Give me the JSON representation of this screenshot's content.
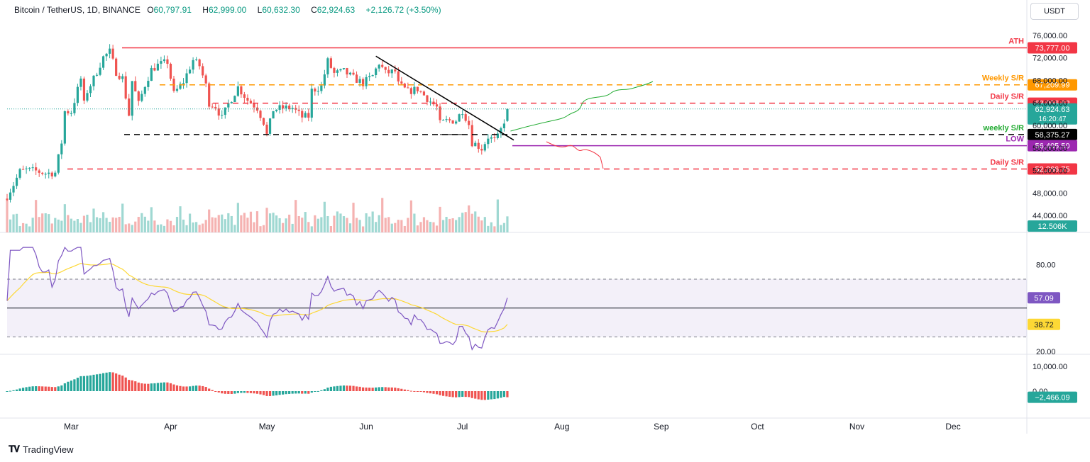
{
  "header": {
    "symbol": "Bitcoin / TetherUS, 1D, BINANCE",
    "open_label": "O",
    "open": "60,797.91",
    "high_label": "H",
    "high": "62,999.00",
    "low_label": "L",
    "low": "60,632.30",
    "close_label": "C",
    "close": "62,924.63",
    "change": "+2,126.72 (+3.50%)"
  },
  "currency_button": "USDT",
  "brand": "TradingView",
  "colors": {
    "up": "#26a69a",
    "down": "#ef5350",
    "rsi": "#7e57c2",
    "rsi_ma": "#fdd835",
    "ath": "#f23645",
    "weekly": "#ff9800",
    "low": "#9c27b0",
    "support": "#000000",
    "forecast_up": "#22ab32",
    "forecast_down": "#f23645"
  },
  "chart_data": [
    {
      "type": "candlestick",
      "title": "",
      "x_ticks": [
        "Mar",
        "Apr",
        "May",
        "Jun",
        "Jul",
        "Aug",
        "Sep",
        "Oct",
        "Nov",
        "Dec"
      ],
      "y_ticks": [
        44000,
        48000,
        52000,
        56000,
        60000,
        64000,
        68000,
        72000,
        76000
      ],
      "y_tick_labels": [
        "44,000.00",
        "48,000.00",
        "52,000.00",
        "56,000.00",
        "60,000.00",
        "64,000.00",
        "68,000.00",
        "72,000.00",
        "76,000.00"
      ],
      "ylim": [
        41000,
        78500
      ],
      "series_close": [
        [
          "2024-02-10",
          47500
        ],
        [
          "2024-02-12",
          49500
        ],
        [
          "2024-02-14",
          51800
        ],
        [
          "2024-02-16",
          52100
        ],
        [
          "2024-02-19",
          51900
        ],
        [
          "2024-02-22",
          51500
        ],
        [
          "2024-02-25",
          51600
        ],
        [
          "2024-02-27",
          57000
        ],
        [
          "2024-02-28",
          62500
        ],
        [
          "2024-03-01",
          62400
        ],
        [
          "2024-03-04",
          68300
        ],
        [
          "2024-03-05",
          63800
        ],
        [
          "2024-03-06",
          66100
        ],
        [
          "2024-03-08",
          68300
        ],
        [
          "2024-03-11",
          72100
        ],
        [
          "2024-03-13",
          73100
        ],
        [
          "2024-03-15",
          69500
        ],
        [
          "2024-03-17",
          68400
        ],
        [
          "2024-03-19",
          61900
        ],
        [
          "2024-03-20",
          67900
        ],
        [
          "2024-03-22",
          63800
        ],
        [
          "2024-03-24",
          67200
        ],
        [
          "2024-03-26",
          69900
        ],
        [
          "2024-03-28",
          70700
        ],
        [
          "2024-03-31",
          71300
        ],
        [
          "2024-04-02",
          65600
        ],
        [
          "2024-04-05",
          67800
        ],
        [
          "2024-04-08",
          71600
        ],
        [
          "2024-04-10",
          70600
        ],
        [
          "2024-04-12",
          67100
        ],
        [
          "2024-04-13",
          64000
        ],
        [
          "2024-04-15",
          63400
        ],
        [
          "2024-04-17",
          61300
        ],
        [
          "2024-04-19",
          63800
        ],
        [
          "2024-04-22",
          66800
        ],
        [
          "2024-04-25",
          64500
        ],
        [
          "2024-04-28",
          63100
        ],
        [
          "2024-04-30",
          60600
        ],
        [
          "2024-05-01",
          58300
        ],
        [
          "2024-05-03",
          62800
        ],
        [
          "2024-05-06",
          63100
        ],
        [
          "2024-05-09",
          63100
        ],
        [
          "2024-05-12",
          61500
        ],
        [
          "2024-05-14",
          61600
        ],
        [
          "2024-05-15",
          66200
        ],
        [
          "2024-05-18",
          66900
        ],
        [
          "2024-05-20",
          71400
        ],
        [
          "2024-05-22",
          69200
        ],
        [
          "2024-05-25",
          69600
        ],
        [
          "2024-05-28",
          68400
        ],
        [
          "2024-05-31",
          67500
        ],
        [
          "2024-06-03",
          68800
        ],
        [
          "2024-06-05",
          71100
        ],
        [
          "2024-06-07",
          69300
        ],
        [
          "2024-06-10",
          69600
        ],
        [
          "2024-06-11",
          67300
        ],
        [
          "2024-06-14",
          66000
        ],
        [
          "2024-06-17",
          66500
        ],
        [
          "2024-06-20",
          64800
        ],
        [
          "2024-06-23",
          63200
        ],
        [
          "2024-06-24",
          60300
        ],
        [
          "2024-06-26",
          60800
        ],
        [
          "2024-06-29",
          60900
        ],
        [
          "2024-07-01",
          62700
        ],
        [
          "2024-07-03",
          60200
        ],
        [
          "2024-07-04",
          57000
        ],
        [
          "2024-07-05",
          56700
        ],
        [
          "2024-07-07",
          55900
        ],
        [
          "2024-07-09",
          58000
        ],
        [
          "2024-07-11",
          57300
        ],
        [
          "2024-07-12",
          57900
        ],
        [
          "2024-07-13",
          59200
        ],
        [
          "2024-07-14",
          60800
        ],
        [
          "2024-07-15",
          62924.63
        ]
      ],
      "levels": [
        {
          "label": "ATH",
          "name": "ATH",
          "value": 73777.0,
          "text": "73,777.00"
        },
        {
          "label": "Weekly S/R",
          "value": 67209.99,
          "text": "67,209.99"
        },
        {
          "label": "Daily S/R",
          "value": 63956.62,
          "text": "63,956.62"
        },
        {
          "label": "weekly S/R",
          "value": 58375.27,
          "text": "58,375.27"
        },
        {
          "label": "LOW",
          "value": 56405.5,
          "text": "56,405.50"
        },
        {
          "label": "Daily S/R",
          "value": 52266.75,
          "text": "52,266.75"
        }
      ],
      "last_price": {
        "value": 62924.63,
        "text": "62,924.63",
        "countdown": "16:20:47"
      },
      "volume": {
        "last_text": "12.506K"
      }
    },
    {
      "type": "line",
      "title": "",
      "y_ticks": [
        20,
        80
      ],
      "y_tick_labels": [
        "20.00",
        "80.00"
      ],
      "ylim": [
        18,
        95
      ],
      "band": [
        30,
        70
      ],
      "midline": 50,
      "rsi_last": "57.09",
      "rsi_ma_last": "38.72"
    },
    {
      "type": "bar",
      "title": "",
      "y_ticks": [
        0,
        10000
      ],
      "y_tick_labels": [
        "0.00",
        "10,000.00"
      ],
      "last_text": "−2,466.09"
    }
  ]
}
